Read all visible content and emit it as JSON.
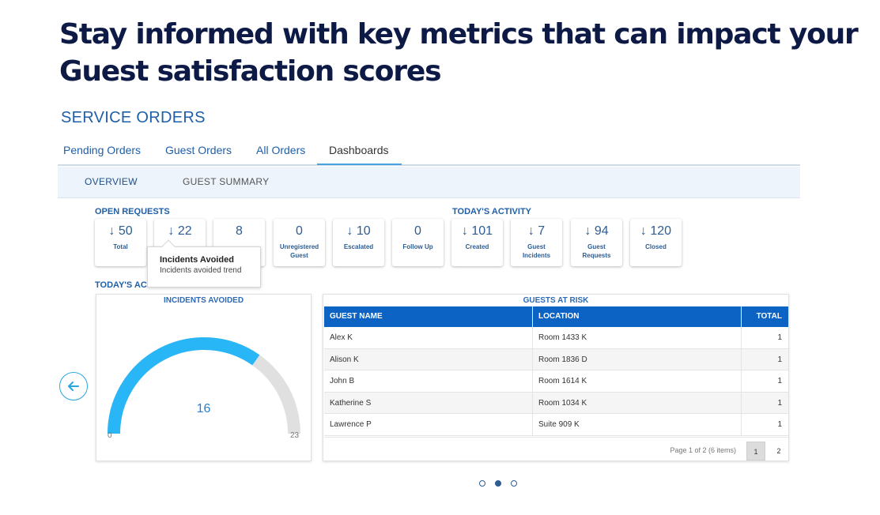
{
  "headline": {
    "line1": "Stay informed with key metrics that can impact your",
    "line2": "Guest satisfaction scores"
  },
  "app": {
    "section_title": "SERVICE ORDERS",
    "tabs": [
      {
        "label": "Pending Orders",
        "active": false
      },
      {
        "label": "Guest Orders",
        "active": false
      },
      {
        "label": "All Orders",
        "active": false
      },
      {
        "label": "Dashboards",
        "active": true
      }
    ],
    "subnav": [
      {
        "label": "OVERVIEW",
        "active": true
      },
      {
        "label": "GUEST SUMMARY",
        "active": false
      }
    ]
  },
  "open_requests": {
    "label": "OPEN REQUESTS",
    "stats": [
      {
        "value": "50",
        "label": "Total",
        "trend_icon": "arrow-down-icon"
      },
      {
        "value": "22",
        "label": "",
        "trend_icon": "arrow-down-icon"
      },
      {
        "value": "8",
        "label": "",
        "trend_icon": ""
      },
      {
        "value": "0",
        "label": "Unregistered Guest",
        "trend_icon": ""
      },
      {
        "value": "10",
        "label": "Escalated",
        "trend_icon": "arrow-down-icon"
      },
      {
        "value": "0",
        "label": "Follow Up",
        "trend_icon": ""
      }
    ]
  },
  "todays_activity": {
    "label": "TODAY'S ACTIVITY",
    "stats": [
      {
        "value": "101",
        "label": "Created",
        "trend_icon": "arrow-down-icon"
      },
      {
        "value": "7",
        "label": "Guest Incidents",
        "trend_icon": "arrow-down-icon"
      },
      {
        "value": "94",
        "label": "Guest Requests",
        "trend_icon": "arrow-down-icon"
      },
      {
        "value": "120",
        "label": "Closed",
        "trend_icon": "arrow-down-icon"
      }
    ]
  },
  "tooltip": {
    "title": "Incidents Avoided",
    "subtitle": "Incidents avoided trend"
  },
  "section2_label": "TODAY'S AC",
  "gauge": {
    "title": "INCIDENTS AVOIDED",
    "value": 16,
    "min": 0,
    "max": 23,
    "value_text": "16",
    "min_text": "0",
    "max_text": "23",
    "fill_color": "#29b6f6",
    "track_color": "#e0e0e0"
  },
  "guests_at_risk": {
    "title": "GUESTS AT RISK",
    "columns": [
      "GUEST NAME",
      "LOCATION",
      "TOTAL"
    ],
    "rows": [
      {
        "name": "Alex K",
        "location": "Room 1433 K",
        "total": "1"
      },
      {
        "name": "Alison K",
        "location": "Room 1836 D",
        "total": "1"
      },
      {
        "name": "John B",
        "location": "Room 1614 K",
        "total": "1"
      },
      {
        "name": "Katherine S",
        "location": "Room 1034 K",
        "total": "1"
      },
      {
        "name": "Lawrence P",
        "location": "Suite 909 K",
        "total": "1"
      }
    ],
    "pager_info": "Page 1 of 2 (6 items)",
    "pages": [
      "1",
      "2"
    ],
    "current_page": "1"
  },
  "carousel": {
    "dot_count": 3,
    "active_index": 1
  },
  "colors": {
    "headline": "#0d1a45",
    "accent": "#1f5fa8",
    "grid_header": "#0c63c4",
    "gauge_fill": "#29b6f6"
  }
}
